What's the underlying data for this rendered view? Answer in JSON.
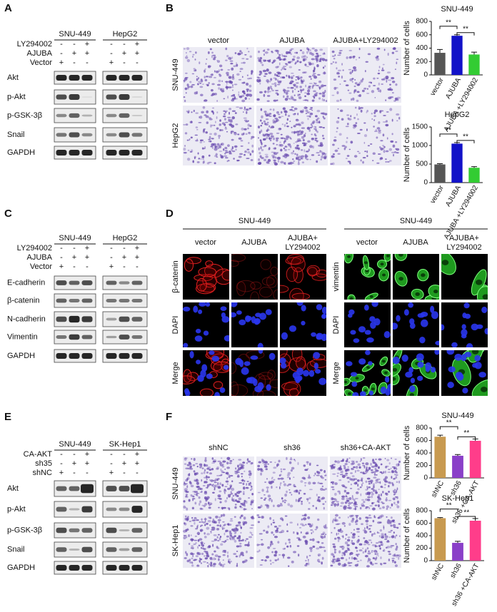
{
  "figure": {
    "A": {
      "label": "A",
      "cell_lines": [
        "SNU-449",
        "HepG2"
      ],
      "treatments": [
        {
          "name": "LY294002",
          "signs": [
            "-",
            "-",
            "+",
            "-",
            "-",
            "+"
          ]
        },
        {
          "name": "AJUBA",
          "signs": [
            "-",
            "+",
            "+",
            "-",
            "+",
            "+"
          ]
        },
        {
          "name": "Vector",
          "signs": [
            "+",
            "-",
            "-",
            "+",
            "-",
            "-"
          ]
        }
      ],
      "blots": [
        "Akt",
        "p-Akt",
        "p-GSK-3β",
        "Snail",
        "GAPDH"
      ]
    },
    "B": {
      "label": "B",
      "columns": [
        "vector",
        "AJUBA",
        "AJUBA+LY294002"
      ],
      "rows": [
        "SNU-449",
        "HepG2"
      ]
    },
    "C": {
      "label": "C",
      "cell_lines": [
        "SNU-449",
        "HepG2"
      ],
      "treatments": [
        {
          "name": "LY294002",
          "signs": [
            "-",
            "-",
            "+",
            "-",
            "-",
            "+"
          ]
        },
        {
          "name": "AJUBA",
          "signs": [
            "-",
            "+",
            "+",
            "-",
            "+",
            "+"
          ]
        },
        {
          "name": "Vector",
          "signs": [
            "+",
            "-",
            "-",
            "+",
            "-",
            "-"
          ]
        }
      ],
      "blots": [
        "E-cadherin",
        "β-catenin",
        "N-cadherin",
        "Vimentin",
        "GAPDH"
      ]
    },
    "D": {
      "label": "D",
      "groups": [
        {
          "title": "SNU-449",
          "columns": [
            [
              "vector"
            ],
            [
              "AJUBA"
            ],
            [
              "AJUBA+",
              "LY294002"
            ]
          ],
          "rows": [
            "β-catenin",
            "DAPI",
            "Merge"
          ]
        },
        {
          "title": "SNU-449",
          "columns": [
            [
              "vector"
            ],
            [
              "AJUBA"
            ],
            [
              "AJUBA+",
              "LY294002"
            ]
          ],
          "rows": [
            "vimentin",
            "DAPI",
            "Merge"
          ]
        }
      ]
    },
    "E": {
      "label": "E",
      "cell_lines": [
        "SNU-449",
        "SK-Hep1"
      ],
      "treatments": [
        {
          "name": "CA-AKT",
          "signs": [
            "-",
            "-",
            "+",
            "-",
            "-",
            "+"
          ]
        },
        {
          "name": "sh35",
          "signs": [
            "-",
            "+",
            "+",
            "-",
            "+",
            "+"
          ]
        },
        {
          "name": "shNC",
          "signs": [
            "+",
            "-",
            "-",
            "+",
            "-",
            "-"
          ]
        }
      ],
      "blots": [
        "Akt",
        "p-Akt",
        "p-GSK-3β",
        "Snail",
        "GAPDH"
      ]
    },
    "F": {
      "label": "F",
      "columns": [
        "shNC",
        "sh36",
        "sh36+CA-AKT"
      ],
      "rows": [
        "SNU-449",
        "SK-Hep1"
      ]
    }
  },
  "chart_data": [
    {
      "type": "bar",
      "title": "SNU-449",
      "y_label": "Number of cells",
      "categories": [
        "vector",
        "AJUBA",
        "AJUBA +LY294002"
      ],
      "values": [
        330,
        585,
        305
      ],
      "errors": [
        50,
        15,
        35
      ],
      "colors": [
        "#555555",
        "#1212c8",
        "#33cc33"
      ],
      "ylim": [
        0,
        800
      ],
      "yticks": [
        0,
        200,
        400,
        600,
        800
      ],
      "annotations": [
        "**",
        "**"
      ]
    },
    {
      "type": "bar",
      "title": "HepG2",
      "y_label": "Number of cells",
      "categories": [
        "vector",
        "AJUBA",
        "AJUBA +LY294002"
      ],
      "values": [
        490,
        1050,
        400
      ],
      "errors": [
        20,
        30,
        30
      ],
      "colors": [
        "#555555",
        "#1212c8",
        "#33cc33"
      ],
      "ylim": [
        0,
        1500
      ],
      "yticks": [
        0,
        500,
        1000,
        1500
      ],
      "annotations": [
        "**",
        "**"
      ]
    },
    {
      "type": "bar",
      "title": "SNU-449",
      "y_label": "Number of cells",
      "categories": [
        "shNC",
        "sh36",
        "sh36 +CA-AKT"
      ],
      "values": [
        660,
        355,
        595
      ],
      "errors": [
        25,
        20,
        30
      ],
      "colors": [
        "#c89a50",
        "#8a3fc8",
        "#ff3d8a"
      ],
      "ylim": [
        0,
        800
      ],
      "yticks": [
        0,
        200,
        400,
        600,
        800
      ],
      "annotations": [
        "**",
        "**"
      ]
    },
    {
      "type": "bar",
      "title": "SK-Hep1",
      "y_label": "Number of cells",
      "categories": [
        "shNC",
        "sh36",
        "sh36 +CA-AKT"
      ],
      "values": [
        680,
        285,
        640
      ],
      "errors": [
        10,
        25,
        35
      ],
      "colors": [
        "#c89a50",
        "#8a3fc8",
        "#ff3d8a"
      ],
      "ylim": [
        0,
        800
      ],
      "yticks": [
        0,
        200,
        400,
        600,
        800
      ],
      "annotations": [
        "**",
        "**"
      ]
    }
  ]
}
